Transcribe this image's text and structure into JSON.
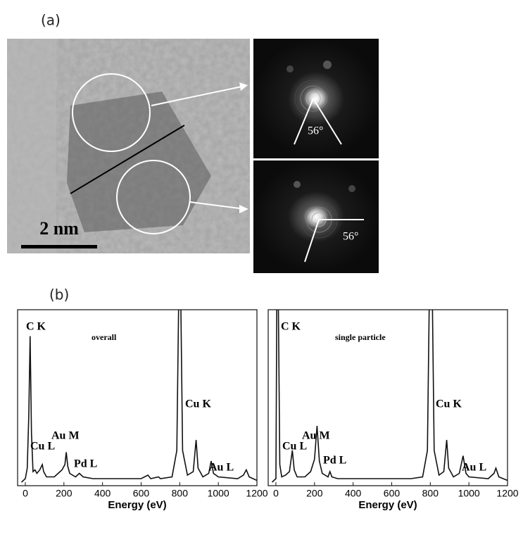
{
  "figure": {
    "panel_a": "(a)",
    "panel_b": "(b)",
    "scale_bar": "2 nm",
    "angle_top": "56°",
    "angle_bottom": "56°"
  },
  "chart_data": [
    {
      "type": "line",
      "title": "overall",
      "xlabel": "Energy (eV)",
      "xlim": [
        -40,
        1200
      ],
      "ylim": [
        0,
        100
      ],
      "xticks": [
        0,
        200,
        400,
        600,
        800,
        1000,
        1200
      ],
      "annotations": [
        "C K",
        "Cu L",
        "Au M",
        "Pd L",
        "Cu K",
        "Au L"
      ],
      "series": [
        {
          "name": "overall",
          "color": "#111111",
          "x": [
            -20,
            0,
            10,
            18,
            25,
            32,
            40,
            50,
            60,
            75,
            88,
            95,
            110,
            150,
            170,
            190,
            205,
            212,
            220,
            230,
            260,
            280,
            300,
            350,
            400,
            500,
            600,
            635,
            650,
            690,
            700,
            760,
            785,
            795,
            805,
            815,
            840,
            870,
            885,
            895,
            920,
            950,
            963,
            975,
            1000,
            1100,
            1130,
            1145,
            1160,
            1200
          ],
          "values": [
            2,
            4,
            10,
            40,
            85,
            30,
            8,
            9,
            7,
            9,
            12,
            8,
            5,
            5,
            7,
            9,
            12,
            19,
            11,
            7,
            5,
            7,
            5,
            4,
            4,
            4,
            4,
            6,
            4,
            5,
            4,
            5,
            20,
            110,
            110,
            20,
            6,
            8,
            26,
            10,
            5,
            7,
            14,
            7,
            5,
            4,
            6,
            9,
            5,
            3
          ]
        }
      ]
    },
    {
      "type": "line",
      "title": "single particle",
      "xlabel": "Energy (eV)",
      "xlim": [
        -40,
        1200
      ],
      "ylim": [
        0,
        100
      ],
      "xticks": [
        0,
        200,
        400,
        600,
        800,
        1000,
        1200
      ],
      "annotations": [
        "C K",
        "Cu L",
        "Au M",
        "Pd L",
        "Cu K",
        "Au L"
      ],
      "series": [
        {
          "name": "single particle",
          "color": "#111111",
          "x": [
            -20,
            0,
            5,
            12,
            20,
            30,
            50,
            70,
            85,
            95,
            110,
            150,
            180,
            200,
            213,
            225,
            240,
            270,
            280,
            290,
            320,
            400,
            500,
            600,
            700,
            760,
            785,
            795,
            810,
            820,
            845,
            870,
            885,
            895,
            920,
            950,
            970,
            985,
            1000,
            1100,
            1130,
            1140,
            1155,
            1200
          ],
          "values": [
            2,
            4,
            110,
            110,
            12,
            5,
            6,
            8,
            20,
            9,
            5,
            5,
            8,
            15,
            34,
            14,
            7,
            5,
            8,
            5,
            4,
            4,
            4,
            4,
            4,
            5,
            20,
            110,
            110,
            20,
            6,
            8,
            26,
            10,
            5,
            7,
            17,
            7,
            5,
            4,
            7,
            10,
            5,
            3
          ]
        }
      ]
    }
  ]
}
